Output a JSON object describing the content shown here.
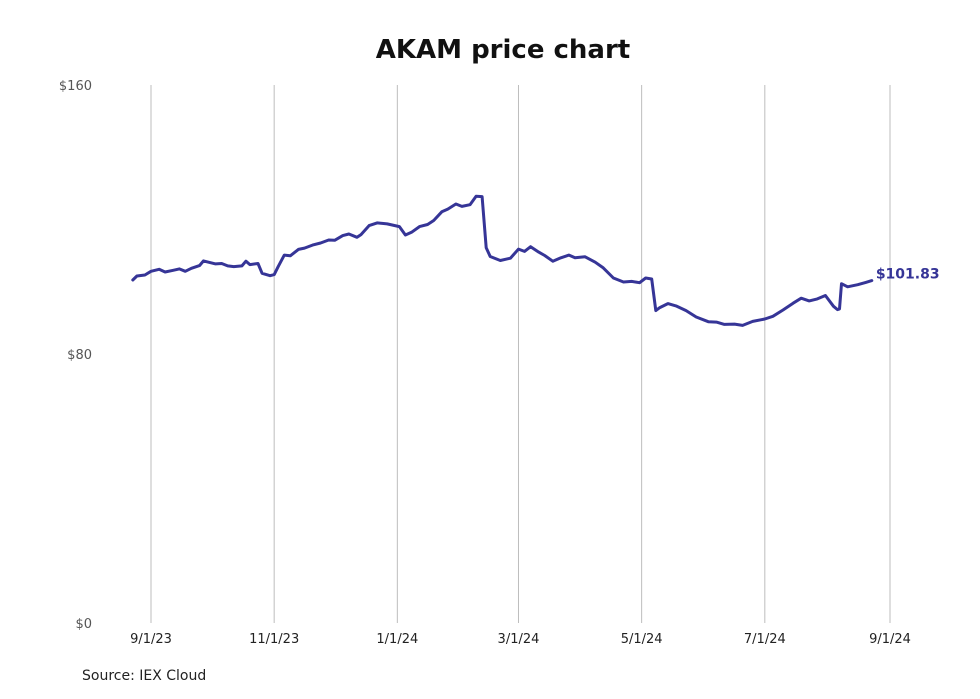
{
  "source": "Source: IEX Cloud",
  "chart_data": {
    "type": "line",
    "title": "AKAM price chart",
    "xlabel": "",
    "ylabel": "",
    "ylim": [
      0,
      160
    ],
    "y_ticks": [
      {
        "value": 0,
        "label": "$0"
      },
      {
        "value": 80,
        "label": "$80"
      },
      {
        "value": 160,
        "label": "$160"
      }
    ],
    "x_ticks": [
      {
        "date": "2023-09-01",
        "label": "9/1/23"
      },
      {
        "date": "2023-11-01",
        "label": "11/1/23"
      },
      {
        "date": "2024-01-01",
        "label": "1/1/24"
      },
      {
        "date": "2024-03-01",
        "label": "3/1/24"
      },
      {
        "date": "2024-05-01",
        "label": "5/1/24"
      },
      {
        "date": "2024-07-01",
        "label": "7/1/24"
      },
      {
        "date": "2024-09-01",
        "label": "9/1/24"
      }
    ],
    "xlim": [
      "2023-08-23",
      "2024-09-01"
    ],
    "grid": "vertical",
    "colors": {
      "line": "#363597",
      "grid": "#bdbdbd",
      "axis_text": "#555555"
    },
    "last_value_label": "$101.83",
    "series": [
      {
        "values": [
          [
            "2023-08-23",
            102.0
          ],
          [
            "2023-08-25",
            103.2
          ],
          [
            "2023-08-29",
            103.5
          ],
          [
            "2023-09-01",
            104.6
          ],
          [
            "2023-09-05",
            105.2
          ],
          [
            "2023-09-08",
            104.4
          ],
          [
            "2023-09-12",
            104.9
          ],
          [
            "2023-09-15",
            105.3
          ],
          [
            "2023-09-18",
            104.6
          ],
          [
            "2023-09-21",
            105.5
          ],
          [
            "2023-09-25",
            106.3
          ],
          [
            "2023-09-27",
            107.7
          ],
          [
            "2023-09-29",
            107.4
          ],
          [
            "2023-10-03",
            106.8
          ],
          [
            "2023-10-06",
            106.9
          ],
          [
            "2023-10-09",
            106.2
          ],
          [
            "2023-10-12",
            106.0
          ],
          [
            "2023-10-16",
            106.2
          ],
          [
            "2023-10-18",
            107.6
          ],
          [
            "2023-10-20",
            106.6
          ],
          [
            "2023-10-24",
            106.9
          ],
          [
            "2023-10-26",
            104.0
          ],
          [
            "2023-10-30",
            103.3
          ],
          [
            "2023-11-01",
            103.6
          ],
          [
            "2023-11-03",
            106.0
          ],
          [
            "2023-11-06",
            109.4
          ],
          [
            "2023-11-09",
            109.2
          ],
          [
            "2023-11-13",
            111.1
          ],
          [
            "2023-11-16",
            111.5
          ],
          [
            "2023-11-20",
            112.4
          ],
          [
            "2023-11-24",
            113.0
          ],
          [
            "2023-11-28",
            113.9
          ],
          [
            "2023-12-01",
            113.8
          ],
          [
            "2023-12-05",
            115.2
          ],
          [
            "2023-12-08",
            115.7
          ],
          [
            "2023-12-12",
            114.7
          ],
          [
            "2023-12-14",
            115.5
          ],
          [
            "2023-12-18",
            118.2
          ],
          [
            "2023-12-22",
            119.0
          ],
          [
            "2023-12-27",
            118.7
          ],
          [
            "2024-01-02",
            117.9
          ],
          [
            "2024-01-05",
            115.4
          ],
          [
            "2024-01-08",
            116.2
          ],
          [
            "2024-01-12",
            117.9
          ],
          [
            "2024-01-16",
            118.5
          ],
          [
            "2024-01-19",
            119.7
          ],
          [
            "2024-01-23",
            122.3
          ],
          [
            "2024-01-26",
            123.1
          ],
          [
            "2024-01-30",
            124.6
          ],
          [
            "2024-02-02",
            123.9
          ],
          [
            "2024-02-06",
            124.4
          ],
          [
            "2024-02-09",
            126.9
          ],
          [
            "2024-02-12",
            126.8
          ],
          [
            "2024-02-14",
            111.6
          ],
          [
            "2024-02-16",
            109.0
          ],
          [
            "2024-02-21",
            107.8
          ],
          [
            "2024-02-26",
            108.5
          ],
          [
            "2024-03-01",
            111.2
          ],
          [
            "2024-03-04",
            110.5
          ],
          [
            "2024-03-07",
            111.9
          ],
          [
            "2024-03-11",
            110.3
          ],
          [
            "2024-03-14",
            109.3
          ],
          [
            "2024-03-18",
            107.6
          ],
          [
            "2024-03-22",
            108.6
          ],
          [
            "2024-03-26",
            109.4
          ],
          [
            "2024-03-29",
            108.6
          ],
          [
            "2024-04-03",
            108.9
          ],
          [
            "2024-04-08",
            107.3
          ],
          [
            "2024-04-12",
            105.6
          ],
          [
            "2024-04-17",
            102.6
          ],
          [
            "2024-04-22",
            101.4
          ],
          [
            "2024-04-26",
            101.6
          ],
          [
            "2024-04-30",
            101.2
          ],
          [
            "2024-05-03",
            102.6
          ],
          [
            "2024-05-06",
            102.3
          ],
          [
            "2024-05-08",
            92.9
          ],
          [
            "2024-05-10",
            93.8
          ],
          [
            "2024-05-14",
            95.0
          ],
          [
            "2024-05-18",
            94.3
          ],
          [
            "2024-05-23",
            92.9
          ],
          [
            "2024-05-28",
            91.0
          ],
          [
            "2024-06-03",
            89.6
          ],
          [
            "2024-06-07",
            89.5
          ],
          [
            "2024-06-11",
            88.8
          ],
          [
            "2024-06-16",
            88.9
          ],
          [
            "2024-06-20",
            88.5
          ],
          [
            "2024-06-25",
            89.7
          ],
          [
            "2024-07-01",
            90.4
          ],
          [
            "2024-07-05",
            91.2
          ],
          [
            "2024-07-10",
            93.1
          ],
          [
            "2024-07-15",
            95.1
          ],
          [
            "2024-07-19",
            96.6
          ],
          [
            "2024-07-23",
            95.8
          ],
          [
            "2024-07-27",
            96.4
          ],
          [
            "2024-07-31",
            97.4
          ],
          [
            "2024-08-04",
            94.2
          ],
          [
            "2024-08-06",
            93.2
          ],
          [
            "2024-08-07",
            93.4
          ],
          [
            "2024-08-08",
            100.9
          ],
          [
            "2024-08-11",
            100.0
          ],
          [
            "2024-08-16",
            100.6
          ],
          [
            "2024-08-20",
            101.3
          ],
          [
            "2024-08-23",
            101.83
          ]
        ]
      }
    ]
  }
}
